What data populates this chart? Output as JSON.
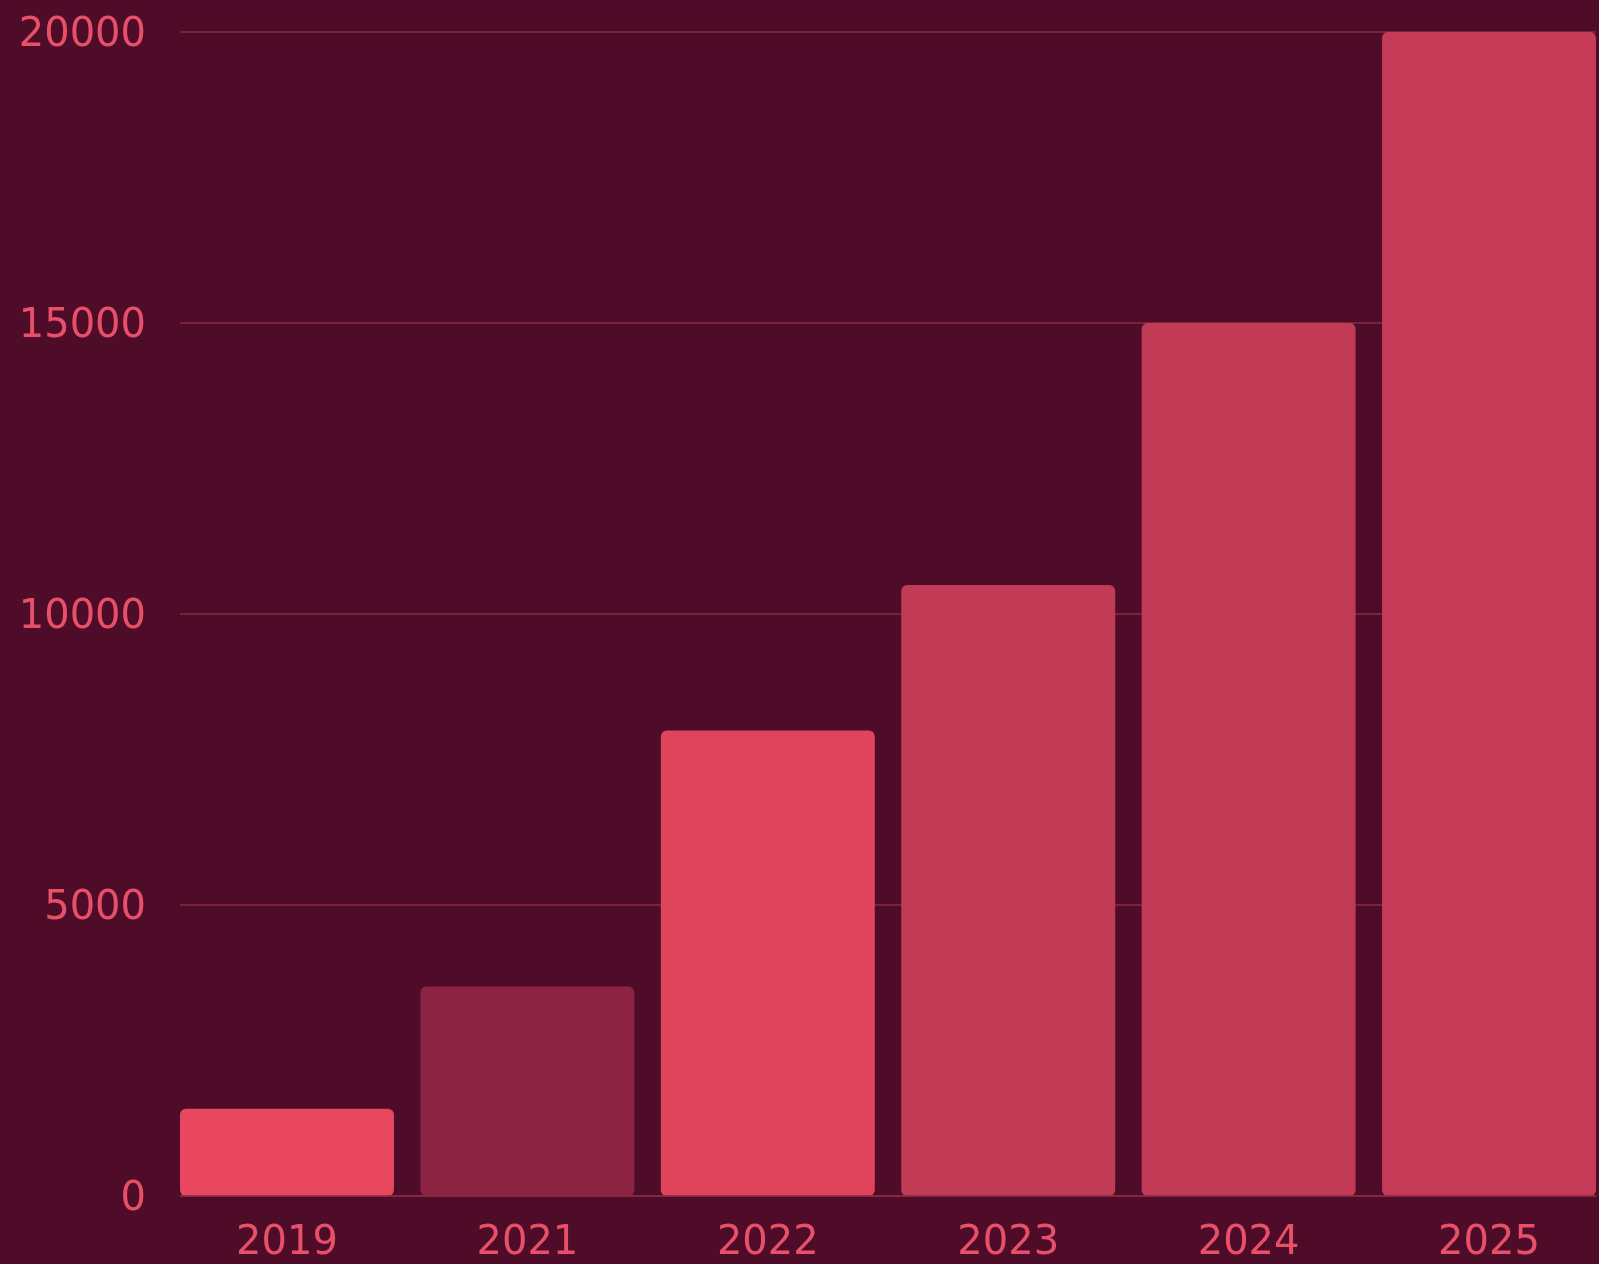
{
  "chart_data": {
    "type": "bar",
    "categories": [
      "2019",
      "2021",
      "2022",
      "2023",
      "2024",
      "2025"
    ],
    "values": [
      1500,
      3600,
      8000,
      10500,
      15000,
      20000
    ],
    "colors": [
      "#e8475f",
      "#8c2342",
      "#e0445d",
      "#c13a56",
      "#c13a56",
      "#c53b57"
    ],
    "ylim": [
      0,
      20000
    ],
    "yticks": [
      0,
      5000,
      10000,
      15000,
      20000
    ],
    "grid": "y"
  }
}
